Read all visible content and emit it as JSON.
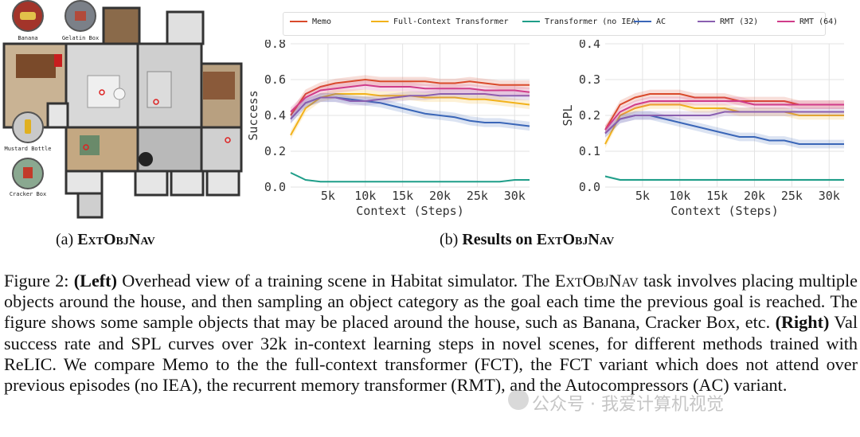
{
  "left_panel": {
    "objects": [
      {
        "label": "Banana",
        "color": "#c23b22"
      },
      {
        "label": "Gelatin Box",
        "color": "#8a8f98"
      },
      {
        "label": "Mustard Bottle",
        "color": "#d9a441"
      },
      {
        "label": "Cracker Box",
        "color": "#b33a2a"
      }
    ]
  },
  "subcaptions": {
    "a_prefix": "(a)",
    "a_name": "ExtObjNav",
    "b_prefix": "(b)",
    "b_text": "Results on",
    "b_name": "ExtObjNav"
  },
  "legend": [
    {
      "name": "Memo",
      "color": "#d94a2b"
    },
    {
      "name": "Full-Context Transformer",
      "color": "#f2b21a"
    },
    {
      "name": "Transformer (no IEA)",
      "color": "#1f9e89"
    },
    {
      "name": "AC",
      "color": "#3a66b8"
    },
    {
      "name": "RMT (32)",
      "color": "#8a5fb0"
    },
    {
      "name": "RMT (64)",
      "color": "#d03c8a"
    }
  ],
  "chart_data": [
    {
      "type": "line",
      "title": "",
      "xlabel": "Context (Steps)",
      "ylabel": "Success",
      "xlim": [
        0,
        32000
      ],
      "ylim": [
        0,
        0.8
      ],
      "xticks": [
        5000,
        10000,
        15000,
        20000,
        25000,
        30000
      ],
      "xtick_labels": [
        "5k",
        "10k",
        "15k",
        "20k",
        "25k",
        "30k"
      ],
      "yticks": [
        0.0,
        0.2,
        0.4,
        0.6,
        0.8
      ],
      "ytick_labels": [
        "0.0",
        "0.2",
        "0.4",
        "0.6",
        "0.8"
      ],
      "grid": true,
      "x": [
        0,
        2000,
        4000,
        6000,
        8000,
        10000,
        12000,
        14000,
        16000,
        18000,
        20000,
        22000,
        24000,
        26000,
        28000,
        30000,
        32000
      ],
      "series": [
        {
          "name": "Memo",
          "values": [
            0.4,
            0.52,
            0.56,
            0.58,
            0.59,
            0.6,
            0.59,
            0.59,
            0.59,
            0.59,
            0.58,
            0.58,
            0.59,
            0.58,
            0.57,
            0.57,
            0.57
          ],
          "band": 0.025
        },
        {
          "name": "Full-Context Transformer",
          "values": [
            0.29,
            0.44,
            0.5,
            0.52,
            0.52,
            0.52,
            0.51,
            0.51,
            0.51,
            0.5,
            0.5,
            0.5,
            0.49,
            0.49,
            0.48,
            0.47,
            0.46
          ],
          "band": 0.025
        },
        {
          "name": "Transformer (no IEA)",
          "values": [
            0.08,
            0.04,
            0.03,
            0.03,
            0.03,
            0.03,
            0.03,
            0.03,
            0.03,
            0.03,
            0.03,
            0.03,
            0.03,
            0.03,
            0.03,
            0.04,
            0.04
          ],
          "band": 0.004
        },
        {
          "name": "AC",
          "values": [
            0.38,
            0.47,
            0.5,
            0.5,
            0.49,
            0.48,
            0.47,
            0.45,
            0.43,
            0.41,
            0.4,
            0.39,
            0.37,
            0.36,
            0.36,
            0.35,
            0.34
          ],
          "band": 0.025
        },
        {
          "name": "RMT (32)",
          "values": [
            0.38,
            0.47,
            0.5,
            0.5,
            0.48,
            0.48,
            0.49,
            0.5,
            0.51,
            0.51,
            0.52,
            0.52,
            0.52,
            0.52,
            0.51,
            0.51,
            0.51
          ],
          "band": 0.025
        },
        {
          "name": "RMT (64)",
          "values": [
            0.42,
            0.5,
            0.54,
            0.55,
            0.56,
            0.57,
            0.56,
            0.56,
            0.56,
            0.55,
            0.55,
            0.55,
            0.55,
            0.54,
            0.54,
            0.54,
            0.53
          ],
          "band": 0.025
        }
      ]
    },
    {
      "type": "line",
      "title": "",
      "xlabel": "Context (Steps)",
      "ylabel": "SPL",
      "xlim": [
        0,
        32000
      ],
      "ylim": [
        0,
        0.4
      ],
      "xticks": [
        5000,
        10000,
        15000,
        20000,
        25000,
        30000
      ],
      "xtick_labels": [
        "5k",
        "10k",
        "15k",
        "20k",
        "25k",
        "30k"
      ],
      "yticks": [
        0.0,
        0.1,
        0.2,
        0.3,
        0.4
      ],
      "ytick_labels": [
        "0.0",
        "0.1",
        "0.2",
        "0.3",
        "0.4"
      ],
      "grid": true,
      "x": [
        0,
        2000,
        4000,
        6000,
        8000,
        10000,
        12000,
        14000,
        16000,
        18000,
        20000,
        22000,
        24000,
        26000,
        28000,
        30000,
        32000
      ],
      "series": [
        {
          "name": "Memo",
          "values": [
            0.16,
            0.23,
            0.25,
            0.26,
            0.26,
            0.26,
            0.25,
            0.25,
            0.25,
            0.24,
            0.24,
            0.24,
            0.24,
            0.23,
            0.23,
            0.23,
            0.23
          ],
          "band": 0.012
        },
        {
          "name": "Full-Context Transformer",
          "values": [
            0.12,
            0.2,
            0.22,
            0.23,
            0.23,
            0.23,
            0.22,
            0.22,
            0.22,
            0.21,
            0.21,
            0.21,
            0.21,
            0.2,
            0.2,
            0.2,
            0.2
          ],
          "band": 0.012
        },
        {
          "name": "Transformer (no IEA)",
          "values": [
            0.03,
            0.02,
            0.02,
            0.02,
            0.02,
            0.02,
            0.02,
            0.02,
            0.02,
            0.02,
            0.02,
            0.02,
            0.02,
            0.02,
            0.02,
            0.02,
            0.02
          ],
          "band": 0.003
        },
        {
          "name": "AC",
          "values": [
            0.15,
            0.19,
            0.2,
            0.2,
            0.19,
            0.18,
            0.17,
            0.16,
            0.15,
            0.14,
            0.14,
            0.13,
            0.13,
            0.12,
            0.12,
            0.12,
            0.12
          ],
          "band": 0.012
        },
        {
          "name": "RMT (32)",
          "values": [
            0.15,
            0.19,
            0.2,
            0.2,
            0.2,
            0.2,
            0.2,
            0.2,
            0.21,
            0.21,
            0.21,
            0.21,
            0.21,
            0.21,
            0.21,
            0.21,
            0.21
          ],
          "band": 0.012
        },
        {
          "name": "RMT (64)",
          "values": [
            0.16,
            0.21,
            0.23,
            0.24,
            0.24,
            0.24,
            0.24,
            0.24,
            0.24,
            0.24,
            0.23,
            0.23,
            0.23,
            0.23,
            0.23,
            0.23,
            0.23
          ],
          "band": 0.012
        }
      ]
    }
  ],
  "caption": {
    "label": "Figure 2:",
    "left_tag": "(Left)",
    "p1": "Overhead view of a training scene in Habitat simulator. The",
    "task_name": "ExtObjNav",
    "p2": "task involves placing multiple objects around the house, and then sampling an object category as the goal each time the previous goal is reached. The figure shows some sample objects that may be placed around the house, such as Banana, Cracker Box, etc.",
    "right_tag": "(Right)",
    "p3": "Val success rate and SPL curves over 32k in-context learning steps in novel scenes, for different methods trained with ReLIC. We compare Memo to the the full-context transformer (FCT), the FCT variant which does not attend over previous episodes (no IEA), the recurrent memory transformer (RMT), and the Autocompressors (AC) variant."
  },
  "watermark": "公众号 · 我爱计算机视觉"
}
